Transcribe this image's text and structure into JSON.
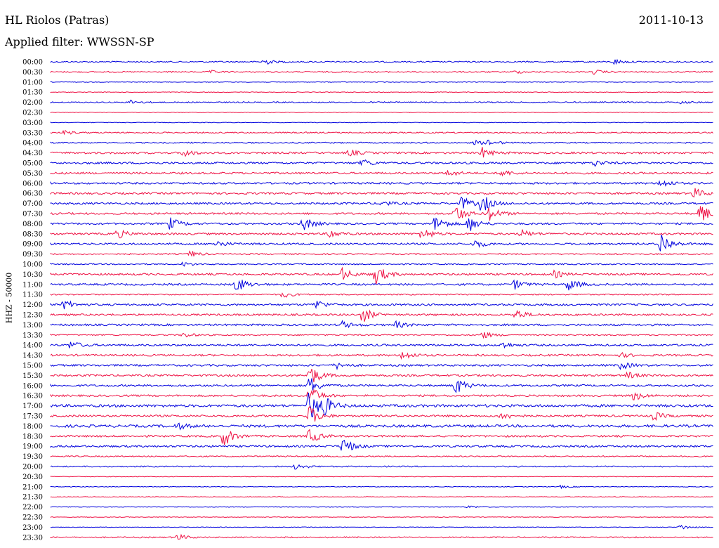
{
  "header": {
    "station": "HL Riolos (Patras)",
    "date": "2011-10-13",
    "filter": "Applied filter: WWSSN-SP"
  },
  "chart_data": {
    "type": "line",
    "title": "HL Riolos (Patras)",
    "ylabel": "HHZ - 50000",
    "xlabel": "",
    "colors": [
      "#0000dd",
      "#ee1144"
    ],
    "rows": [
      {
        "label": "00:00",
        "amp": 2,
        "events": [
          [
            0.32,
            5
          ],
          [
            0.85,
            4
          ]
        ]
      },
      {
        "label": "00:30",
        "amp": 2,
        "events": [
          [
            0.24,
            2
          ],
          [
            0.7,
            2
          ],
          [
            0.82,
            3
          ]
        ]
      },
      {
        "label": "01:00",
        "amp": 1,
        "events": []
      },
      {
        "label": "01:30",
        "amp": 1,
        "events": []
      },
      {
        "label": "02:00",
        "amp": 2,
        "events": [
          [
            0.12,
            3
          ],
          [
            0.95,
            2
          ]
        ]
      },
      {
        "label": "02:30",
        "amp": 1,
        "events": []
      },
      {
        "label": "03:00",
        "amp": 1,
        "events": []
      },
      {
        "label": "03:30",
        "amp": 2,
        "events": [
          [
            0.02,
            3
          ]
        ]
      },
      {
        "label": "04:00",
        "amp": 2,
        "events": [
          [
            0.64,
            3
          ],
          [
            0.66,
            4
          ]
        ]
      },
      {
        "label": "04:30",
        "amp": 3,
        "events": [
          [
            0.2,
            6
          ],
          [
            0.45,
            5
          ],
          [
            0.65,
            8
          ]
        ]
      },
      {
        "label": "05:00",
        "amp": 3,
        "events": [
          [
            0.47,
            6
          ],
          [
            0.82,
            5
          ]
        ]
      },
      {
        "label": "05:30",
        "amp": 3,
        "events": [
          [
            0.6,
            5
          ],
          [
            0.68,
            5
          ]
        ]
      },
      {
        "label": "06:00",
        "amp": 3,
        "events": [
          [
            0.92,
            6
          ]
        ]
      },
      {
        "label": "06:30",
        "amp": 3,
        "events": [
          [
            0.97,
            8
          ]
        ]
      },
      {
        "label": "07:00",
        "amp": 3,
        "events": [
          [
            0.5,
            4
          ],
          [
            0.62,
            10
          ],
          [
            0.65,
            14
          ]
        ]
      },
      {
        "label": "07:30",
        "amp": 3,
        "events": [
          [
            0.61,
            14
          ],
          [
            0.66,
            12
          ],
          [
            0.98,
            16
          ]
        ]
      },
      {
        "label": "08:00",
        "amp": 3,
        "events": [
          [
            0.18,
            9
          ],
          [
            0.38,
            11
          ],
          [
            0.58,
            12
          ],
          [
            0.63,
            13
          ]
        ]
      },
      {
        "label": "08:30",
        "amp": 3,
        "events": [
          [
            0.1,
            7
          ],
          [
            0.42,
            7
          ],
          [
            0.56,
            10
          ],
          [
            0.71,
            6
          ]
        ]
      },
      {
        "label": "09:00",
        "amp": 3,
        "events": [
          [
            0.25,
            5
          ],
          [
            0.64,
            6
          ],
          [
            0.92,
            18
          ]
        ]
      },
      {
        "label": "09:30",
        "amp": 2,
        "events": [
          [
            0.21,
            5
          ]
        ]
      },
      {
        "label": "10:00",
        "amp": 2,
        "events": [
          [
            0.2,
            3
          ]
        ]
      },
      {
        "label": "10:30",
        "amp": 3,
        "events": [
          [
            0.44,
            9
          ],
          [
            0.49,
            16
          ],
          [
            0.76,
            5
          ]
        ]
      },
      {
        "label": "11:00",
        "amp": 3,
        "events": [
          [
            0.28,
            12
          ],
          [
            0.7,
            7
          ],
          [
            0.78,
            10
          ]
        ]
      },
      {
        "label": "11:30",
        "amp": 2,
        "events": [
          [
            0.35,
            5
          ]
        ]
      },
      {
        "label": "12:00",
        "amp": 3,
        "events": [
          [
            0.02,
            7
          ],
          [
            0.4,
            7
          ]
        ]
      },
      {
        "label": "12:30",
        "amp": 3,
        "events": [
          [
            0.47,
            12
          ],
          [
            0.7,
            8
          ]
        ]
      },
      {
        "label": "13:00",
        "amp": 3,
        "events": [
          [
            0.44,
            5
          ],
          [
            0.52,
            5
          ]
        ]
      },
      {
        "label": "13:30",
        "amp": 2,
        "events": [
          [
            0.2,
            4
          ],
          [
            0.65,
            6
          ]
        ]
      },
      {
        "label": "14:00",
        "amp": 3,
        "events": [
          [
            0.03,
            6
          ],
          [
            0.68,
            5
          ]
        ]
      },
      {
        "label": "14:30",
        "amp": 3,
        "events": [
          [
            0.53,
            7
          ],
          [
            0.86,
            3
          ]
        ]
      },
      {
        "label": "15:00",
        "amp": 3,
        "events": [
          [
            0.43,
            5
          ],
          [
            0.86,
            6
          ]
        ]
      },
      {
        "label": "15:30",
        "amp": 3,
        "events": [
          [
            0.39,
            18
          ],
          [
            0.87,
            5
          ]
        ]
      },
      {
        "label": "16:00",
        "amp": 3,
        "events": [
          [
            0.39,
            14
          ],
          [
            0.61,
            14
          ]
        ]
      },
      {
        "label": "16:30",
        "amp": 3,
        "events": [
          [
            0.39,
            16
          ],
          [
            0.88,
            7
          ]
        ]
      },
      {
        "label": "17:00",
        "amp": 4,
        "events": [
          [
            0.39,
            24
          ],
          [
            0.41,
            14
          ]
        ]
      },
      {
        "label": "17:30",
        "amp": 3,
        "events": [
          [
            0.39,
            16
          ],
          [
            0.68,
            6
          ],
          [
            0.91,
            6
          ]
        ]
      },
      {
        "label": "18:00",
        "amp": 4,
        "events": [
          [
            0.19,
            5
          ]
        ]
      },
      {
        "label": "18:30",
        "amp": 3,
        "events": [
          [
            0.26,
            16
          ],
          [
            0.39,
            12
          ]
        ]
      },
      {
        "label": "19:00",
        "amp": 3,
        "events": [
          [
            0.44,
            14
          ]
        ]
      },
      {
        "label": "19:30",
        "amp": 2,
        "events": []
      },
      {
        "label": "20:00",
        "amp": 2,
        "events": [
          [
            0.37,
            5
          ]
        ]
      },
      {
        "label": "20:30",
        "amp": 1,
        "events": []
      },
      {
        "label": "21:00",
        "amp": 1,
        "events": [
          [
            0.77,
            2
          ]
        ]
      },
      {
        "label": "21:30",
        "amp": 1,
        "events": []
      },
      {
        "label": "22:00",
        "amp": 1,
        "events": [
          [
            0.63,
            2
          ]
        ]
      },
      {
        "label": "22:30",
        "amp": 1,
        "events": []
      },
      {
        "label": "23:00",
        "amp": 1,
        "events": [
          [
            0.95,
            4
          ]
        ]
      },
      {
        "label": "23:30",
        "amp": 2,
        "events": [
          [
            0.19,
            5
          ]
        ]
      }
    ]
  }
}
